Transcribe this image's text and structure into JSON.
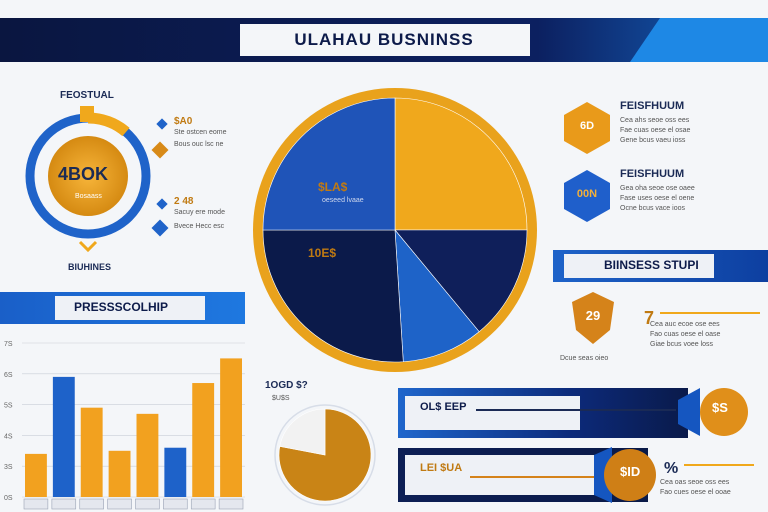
{
  "header": {
    "title": "ULAHAU BUSNINSS"
  },
  "left_panel": {
    "label_top": "FEOSTUAL",
    "ring_value": "4BOK",
    "ring_sub": "Bosaass",
    "label_bottom": "BIUHINES",
    "items": [
      {
        "value": "$A0",
        "text": "Ste ostcen eome"
      },
      {
        "value": "",
        "text": "Bous ouc lsc ne"
      },
      {
        "value": "2 48",
        "text": "Sacuy ere mode"
      },
      {
        "value": "",
        "text": "Bvece Hecc esc"
      }
    ]
  },
  "pie": {
    "label_a": "$LA$",
    "label_a_sub": "oeseed lvaae",
    "label_b": "10E$"
  },
  "right_top": [
    {
      "badge": "6D",
      "title": "FEISFHUUM",
      "lines": [
        "Cea ahs seoe oss ees",
        "Fae cuas oese el osae",
        "Gene bcus vaeu ioss"
      ]
    },
    {
      "badge": "00N",
      "title": "FEISFHUUM",
      "lines": [
        "Gea oha seoe ose oaee",
        "Fase uses oese el oene",
        "Ocne bcus vace ioos"
      ]
    }
  ],
  "business_strip": {
    "label": "BIINSESS STUPI"
  },
  "shield_block": {
    "badge": "29",
    "value": "7",
    "lines": [
      "Cea auc ecoe ose ees",
      "Fao cuas oese el oase",
      "Giae bcus voee loss",
      "Dcue seas oieo"
    ]
  },
  "process_banner": {
    "label": "PRESSSCOLHIP"
  },
  "small_pie": {
    "value": "1OGD $?",
    "sub": "$U$S"
  },
  "bar_strips": [
    {
      "label": "OL$ EEP",
      "badge": "$S"
    },
    {
      "label": "LEI $UA",
      "badge": "$ID"
    }
  ],
  "bottom_right": {
    "value": "%",
    "lines": [
      "Cea oas seoe oss ees",
      "Fao cues oese el ooae"
    ]
  },
  "chart_data": [
    {
      "type": "pie",
      "title": "",
      "slices": [
        {
          "name": "",
          "value": 25,
          "color": "#f0a81c"
        },
        {
          "name": "",
          "value": 14,
          "color": "#0f1f5a"
        },
        {
          "name": "",
          "value": 10,
          "color": "#1e63c8"
        },
        {
          "name": "",
          "value": 26,
          "color": "#0b1a4a"
        },
        {
          "name": "",
          "value": 25,
          "color": "#1f54b8"
        }
      ]
    },
    {
      "type": "bar",
      "title": "",
      "ylim": [
        0,
        100
      ],
      "yticks": [
        "7S",
        "6S",
        "5S",
        "4S",
        "3S",
        "0S"
      ],
      "categories": [
        "",
        "",
        "",
        "",
        "",
        "",
        "",
        ""
      ],
      "series": [
        {
          "name": "",
          "values": [
            28,
            78,
            58,
            30,
            54,
            32,
            74,
            90
          ]
        }
      ],
      "colors": [
        "#f2a11f",
        "#1e62c9",
        "#f2a11f",
        "#f2a11f",
        "#f2a11f",
        "#1e62c9",
        "#f2a11f",
        "#f2a11f"
      ]
    },
    {
      "type": "pie",
      "title": "",
      "slices": [
        {
          "name": "",
          "value": 78,
          "color": "#c98416"
        },
        {
          "name": "",
          "value": 22,
          "color": "#f2f2f2"
        }
      ]
    }
  ]
}
